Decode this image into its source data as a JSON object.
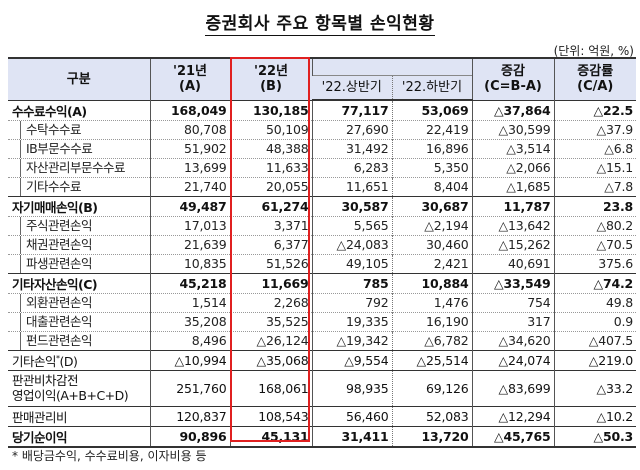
{
  "title": "증권회사 주요 항목별 손익현황",
  "unit": "(단위: 억원, %)",
  "highlight_color": "#e02020",
  "header": {
    "category": "구분",
    "y21": "'21년",
    "y21_sub": "(A)",
    "y22": "'22년",
    "y22_sub": "(B)",
    "h1": "'22.상반기",
    "h2": "'22.하반기",
    "change": "증감",
    "change_sub": "(C=B-A)",
    "rate": "증감률",
    "rate_sub": "(C/A)"
  },
  "rows": [
    {
      "label": "수수료수익(A)",
      "type": "main",
      "values": [
        "168,049",
        "130,185",
        "77,117",
        "53,069",
        "△37,864",
        "△22.5"
      ]
    },
    {
      "label": "수탁수수료",
      "type": "sub",
      "values": [
        "80,708",
        "50,109",
        "27,690",
        "22,419",
        "△30,599",
        "△37.9"
      ]
    },
    {
      "label": "IB부문수수료",
      "type": "sub",
      "values": [
        "51,902",
        "48,388",
        "31,492",
        "16,896",
        "△3,514",
        "△6.8"
      ]
    },
    {
      "label": "자산관리부문수수료",
      "type": "sub",
      "values": [
        "13,699",
        "11,633",
        "6,283",
        "5,350",
        "△2,066",
        "△15.1"
      ]
    },
    {
      "label": "기타수수료",
      "type": "sub",
      "values": [
        "21,740",
        "20,055",
        "11,651",
        "8,404",
        "△1,685",
        "△7.8"
      ]
    },
    {
      "label": "자기매매손익(B)",
      "type": "main",
      "values": [
        "49,487",
        "61,274",
        "30,587",
        "30,687",
        "11,787",
        "23.8"
      ]
    },
    {
      "label": "주식관련손익",
      "type": "sub",
      "values": [
        "17,013",
        "3,371",
        "5,565",
        "△2,194",
        "△13,642",
        "△80.2"
      ]
    },
    {
      "label": "채권관련손익",
      "type": "sub",
      "values": [
        "21,639",
        "6,377",
        "△24,083",
        "30,460",
        "△15,262",
        "△70.5"
      ]
    },
    {
      "label": "파생관련손익",
      "type": "sub",
      "values": [
        "10,835",
        "51,526",
        "49,105",
        "2,421",
        "40,691",
        "375.6"
      ]
    },
    {
      "label": "기타자산손익(C)",
      "type": "main",
      "values": [
        "45,218",
        "11,669",
        "785",
        "10,884",
        "△33,549",
        "△74.2"
      ]
    },
    {
      "label": "외환관련손익",
      "type": "sub",
      "values": [
        "1,514",
        "2,268",
        "792",
        "1,476",
        "754",
        "49.8"
      ]
    },
    {
      "label": "대출관련손익",
      "type": "sub",
      "values": [
        "35,208",
        "35,525",
        "19,335",
        "16,190",
        "317",
        "0.9"
      ]
    },
    {
      "label": "펀드관련손익",
      "type": "sub",
      "values": [
        "8,496",
        "△26,124",
        "△19,342",
        "△6,782",
        "△34,620",
        "△407.5"
      ]
    },
    {
      "label": "기타손익",
      "label_mark": "*",
      "label_suffix": "(D)",
      "type": "other",
      "values": [
        "△10,994",
        "△35,068",
        "△9,554",
        "△25,514",
        "△24,074",
        "△219.0"
      ]
    },
    {
      "label": "판관비차감전",
      "label2": "영업이익(A+B+C+D)",
      "type": "tall",
      "values": [
        "251,760",
        "168,061",
        "98,935",
        "69,126",
        "△83,699",
        "△33.2"
      ]
    },
    {
      "label": "판매관리비",
      "type": "other",
      "values": [
        "120,837",
        "108,543",
        "56,460",
        "52,083",
        "△12,294",
        "△10.2"
      ]
    },
    {
      "label": "당기순이익",
      "type": "bold",
      "values": [
        "90,896",
        "45,131",
        "31,411",
        "13,720",
        "△45,765",
        "△50.3"
      ]
    }
  ],
  "footnote": "* 배당금수익, 수수료비용, 이자비용 등"
}
